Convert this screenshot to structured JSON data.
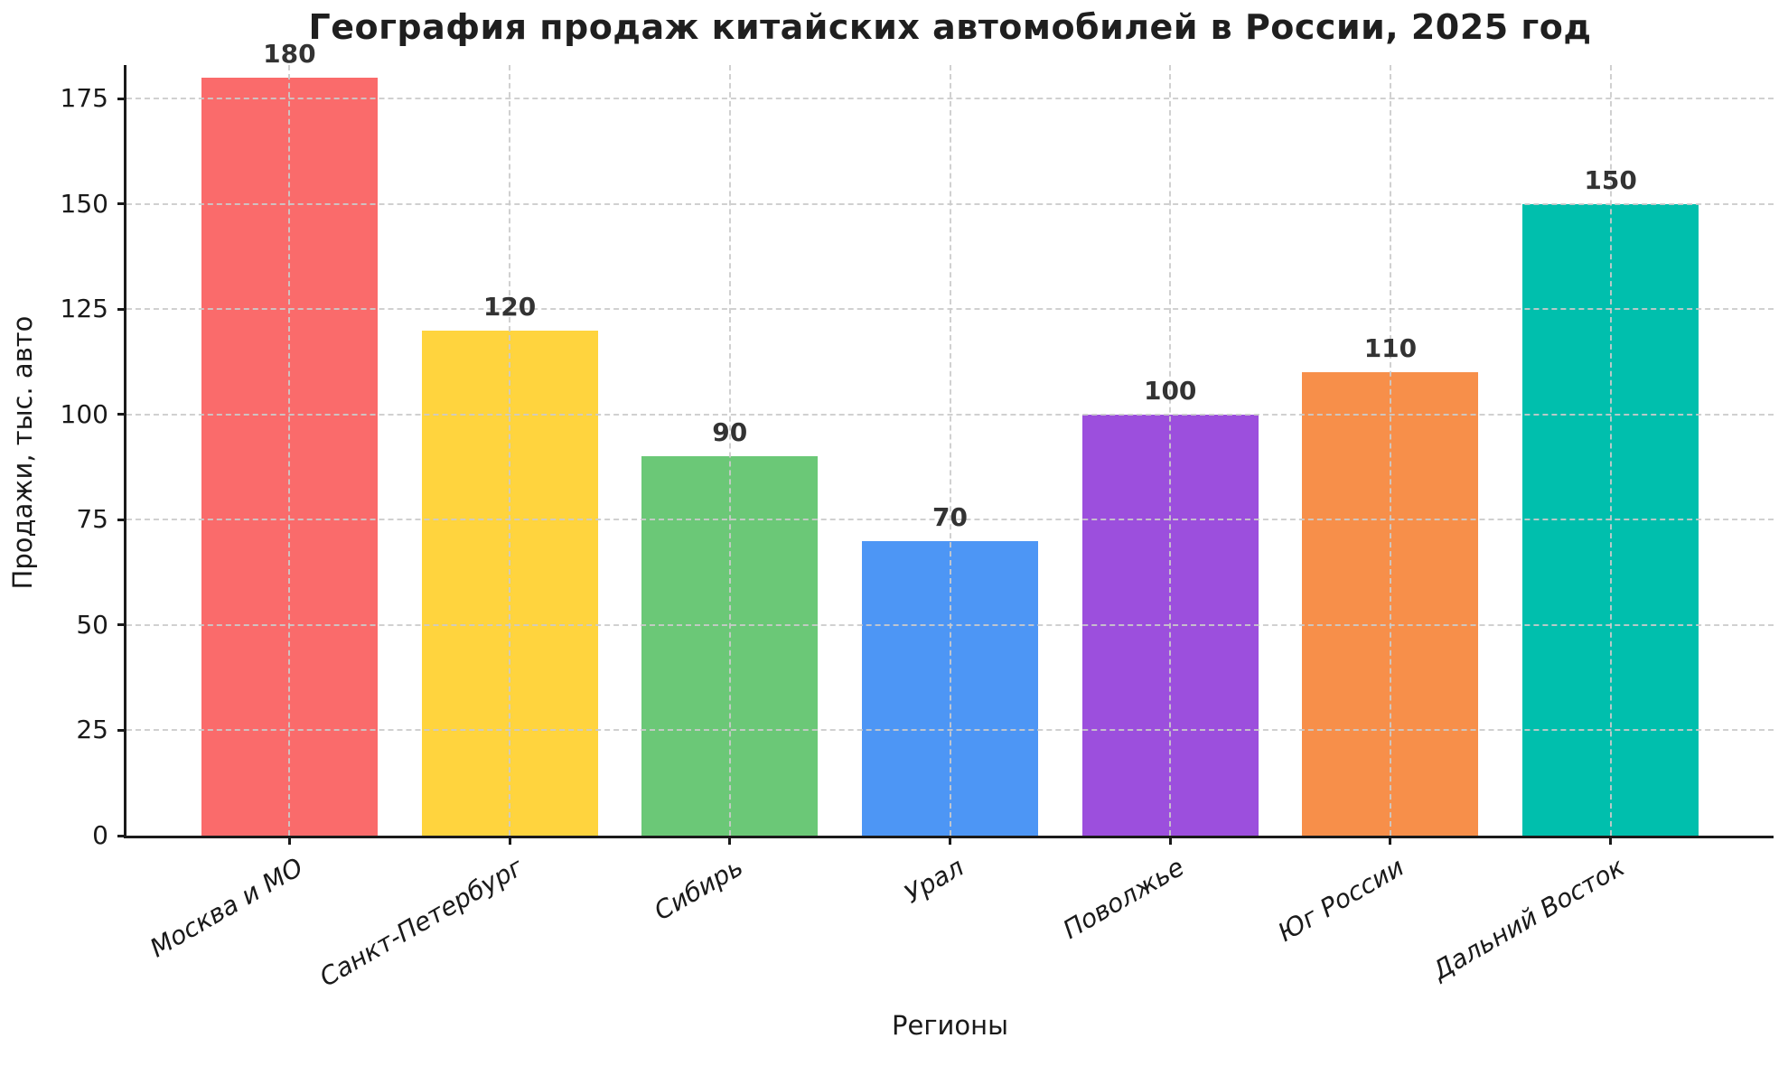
{
  "chart_data": {
    "type": "bar",
    "title": "География продаж китайских автомобилей в России, 2025 год",
    "xlabel": "Регионы",
    "ylabel": "Продажи, тыс. авто",
    "categories": [
      "Москва и МО",
      "Санкт-Петербург",
      "Сибирь",
      "Урал",
      "Поволжье",
      "Юг России",
      "Дальний Восток"
    ],
    "values": [
      180,
      120,
      90,
      70,
      100,
      110,
      150
    ],
    "bar_labels": [
      "180",
      "120",
      "90",
      "70",
      "100",
      "110",
      "150"
    ],
    "bar_colors": [
      "#FA6B6B",
      "#FFD43E",
      "#6BC877",
      "#4D96F5",
      "#9C4FDD",
      "#F78F4A",
      "#00BFAD"
    ],
    "yticks": [
      0,
      25,
      50,
      75,
      100,
      125,
      150,
      175
    ],
    "ytick_labels": [
      "0",
      "25",
      "50",
      "75",
      "100",
      "125",
      "150",
      "175"
    ],
    "ylim": [
      0,
      183
    ],
    "grid": true,
    "grid_style": "dashed",
    "grid_color": "#cbcbcb",
    "axis_color": "#1a1a1a",
    "value_label_color": "#333333",
    "background_color": "#ffffff",
    "legend": "none",
    "bar_width_fraction": 0.8
  }
}
